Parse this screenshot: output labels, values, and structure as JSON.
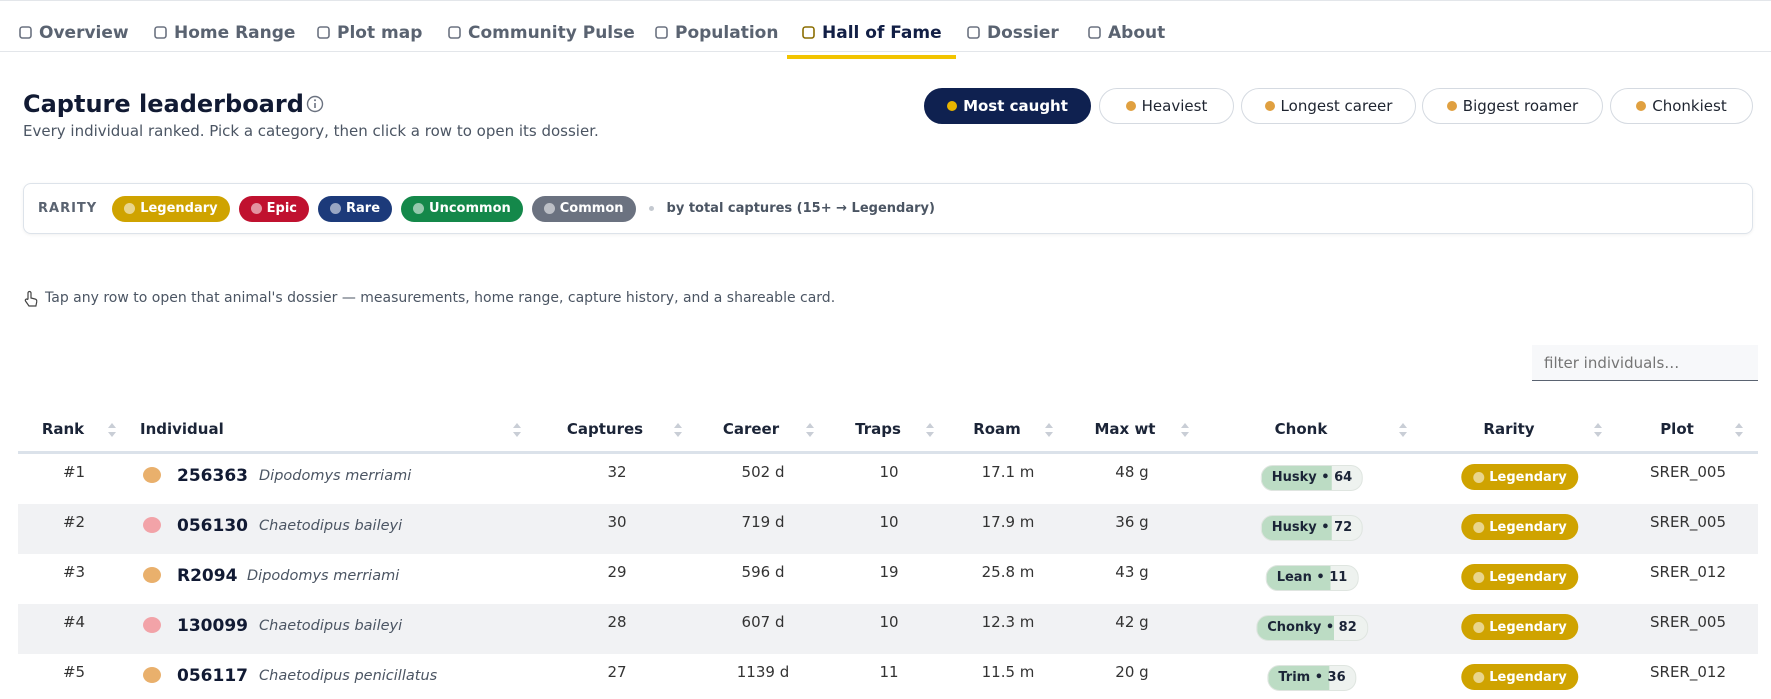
{
  "nav": {
    "tabs": [
      "Overview",
      "Home Range",
      "Plot map",
      "Community Pulse",
      "Population",
      "Hall of Fame",
      "Dossier",
      "About"
    ],
    "active": 5
  },
  "header": {
    "title": "Capture leaderboard",
    "subtitle": "Every individual ranked. Pick a category, then click a row to open its dossier."
  },
  "categories": {
    "options": [
      "Most caught",
      "Heaviest",
      "Longest career",
      "Biggest roamer",
      "Chonkiest"
    ],
    "active": 0
  },
  "rarity": {
    "label": "RARITY",
    "levels": [
      {
        "name": "Legendary",
        "color": "#cfa300"
      },
      {
        "name": "Epic",
        "color": "#c0112f"
      },
      {
        "name": "Rare",
        "color": "#1c3a7a"
      },
      {
        "name": "Uncommon",
        "color": "#14884a"
      },
      {
        "name": "Common",
        "color": "#6b7280"
      }
    ],
    "note": "by total captures (15+ → Legendary)"
  },
  "hint": "Tap any row to open that animal's dossier — measurements, home range, capture history, and a shareable card.",
  "filter": {
    "placeholder": "filter individuals…"
  },
  "table": {
    "columns": [
      "Rank",
      "Individual",
      "Captures",
      "Career",
      "Traps",
      "Roam",
      "Max wt",
      "Chonk",
      "Rarity",
      "Plot"
    ],
    "rows": [
      [
        "#1",
        "256363",
        "Dipodomys merriami",
        "32",
        "502 d",
        "10",
        "17.1 m",
        "48 g",
        "Husky • 64",
        "Legendary",
        "SRER_005"
      ],
      [
        "#2",
        "056130",
        "Chaetodipus baileyi",
        "30",
        "719 d",
        "10",
        "17.9 m",
        "36 g",
        "Husky • 72",
        "Legendary",
        "SRER_005"
      ],
      [
        "#3",
        "R2094",
        "Dipodomys merriami",
        "29",
        "596 d",
        "19",
        "25.8 m",
        "43 g",
        "Lean • 11",
        "Legendary",
        "SRER_012"
      ],
      [
        "#4",
        "130099",
        "Chaetodipus baileyi",
        "28",
        "607 d",
        "10",
        "12.3 m",
        "42 g",
        "Chonky • 82",
        "Legendary",
        "SRER_005"
      ],
      [
        "#5",
        "056117",
        "Chaetodipus penicillatus",
        "27",
        "1139 d",
        "11",
        "11.5 m",
        "20 g",
        "Trim • 36",
        "Legendary",
        "SRER_012"
      ]
    ]
  }
}
